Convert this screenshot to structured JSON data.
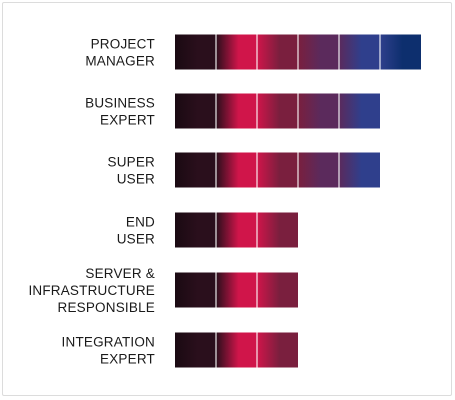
{
  "chart_data": {
    "type": "bar",
    "orientation": "horizontal",
    "title": "",
    "xlabel": "",
    "ylabel": "",
    "categories": [
      [
        "PROJECT",
        "MANAGER"
      ],
      [
        "BUSINESS",
        "EXPERT"
      ],
      [
        "SUPER",
        "USER"
      ],
      [
        "END",
        "USER"
      ],
      [
        "SERVER &",
        "INFRASTRUCTURE",
        "RESPONSIBLE"
      ],
      [
        "INTEGRATION",
        "EXPERT"
      ]
    ],
    "values": [
      6,
      5,
      5,
      3,
      3,
      3
    ],
    "xlim": [
      0,
      6
    ],
    "grid": false,
    "segment_colors": [
      "#2a0f1c",
      "#d0154a",
      "#7a1f3e",
      "#5b2a5c",
      "#2f3f8c",
      "#0d2f6e"
    ]
  }
}
